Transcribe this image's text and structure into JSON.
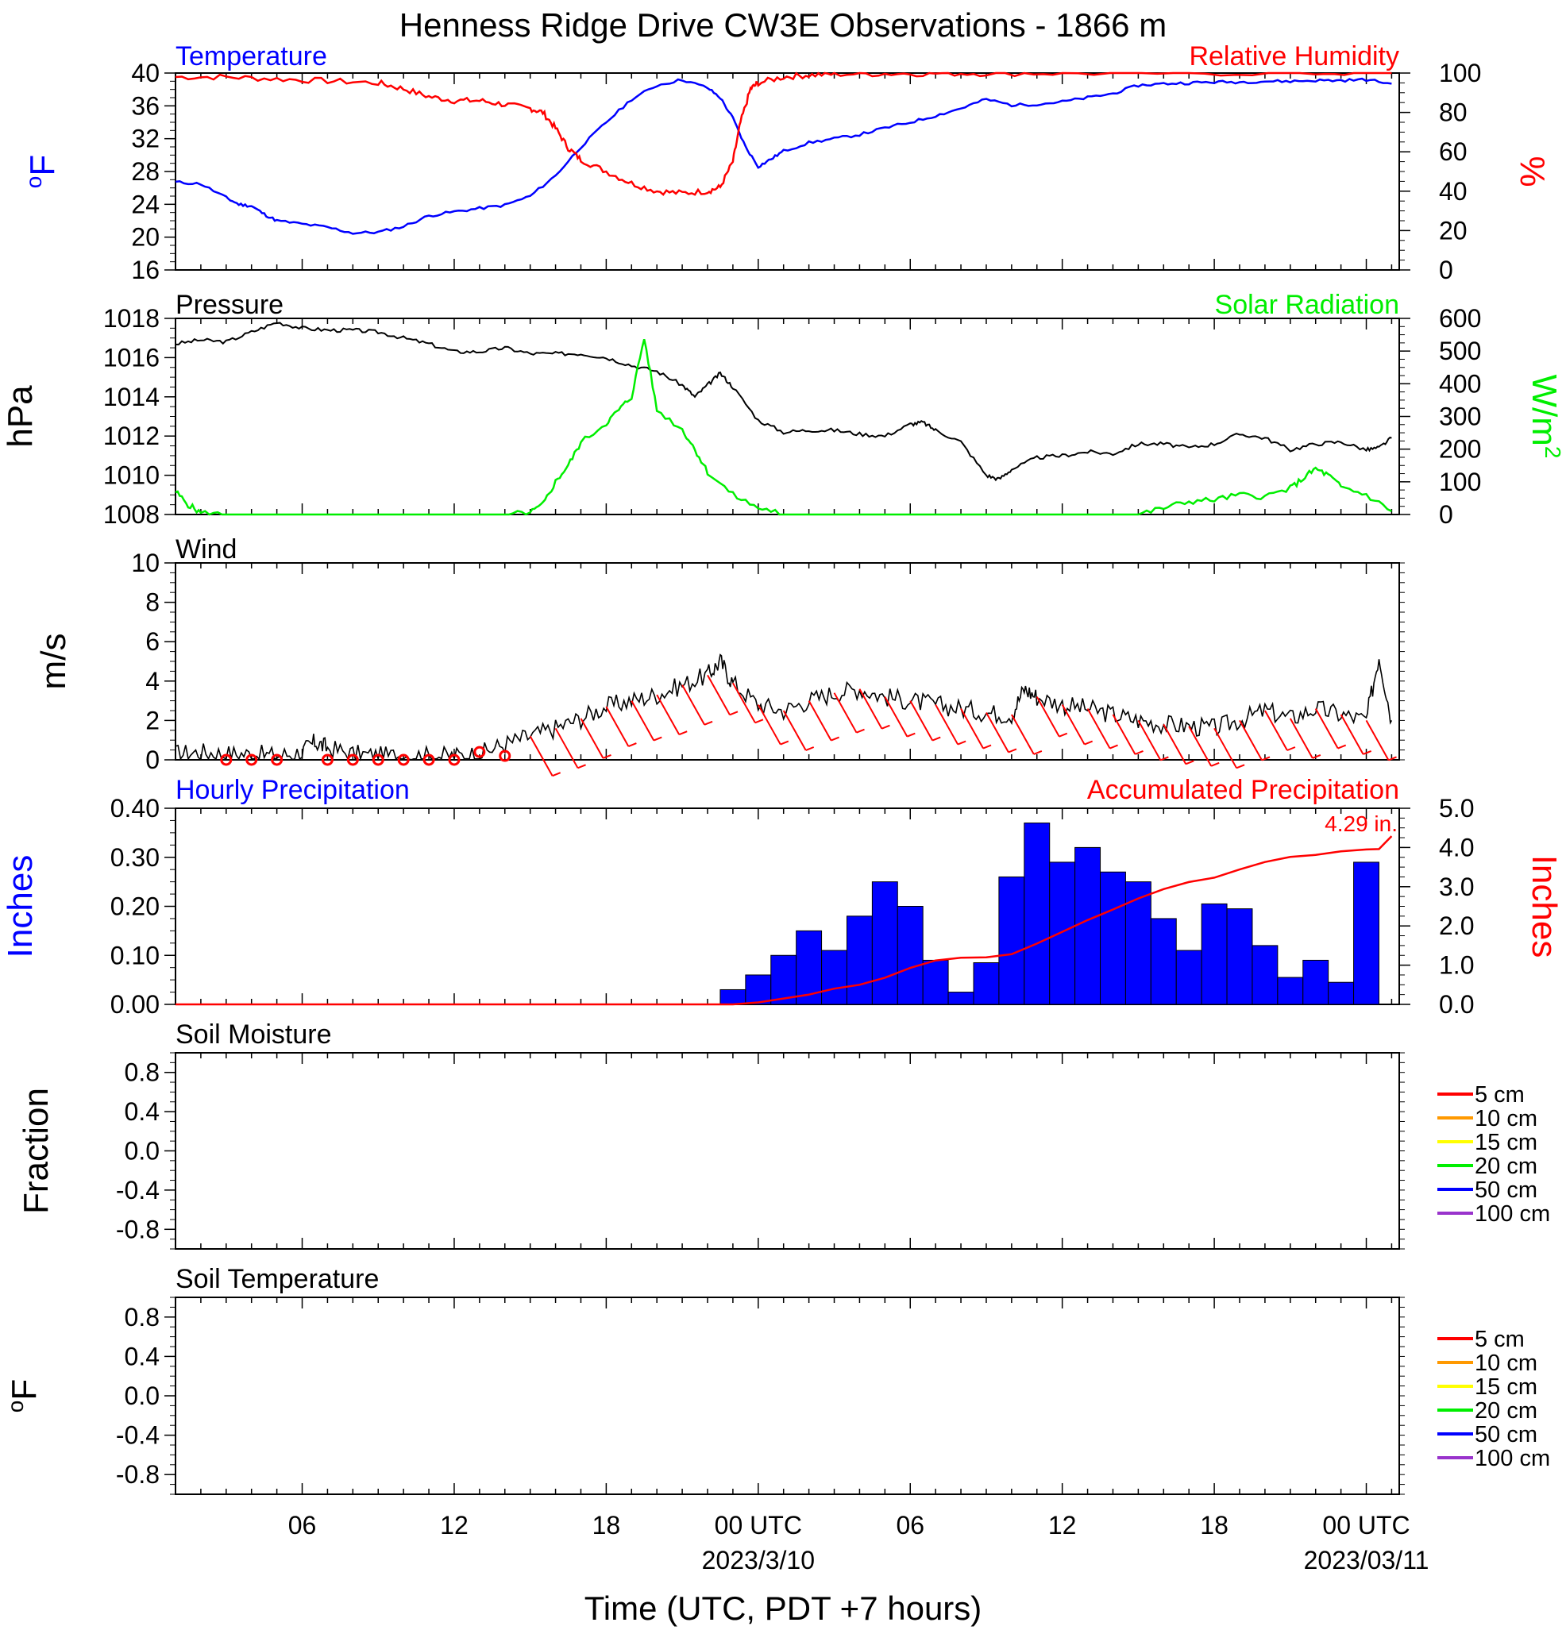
{
  "title": "Henness Ridge Drive CW3E Observations - 1866 m",
  "xlabel": "Time (UTC, PDT +7 hours)",
  "time_axis": {
    "range_hours": [
      0,
      48.3
    ],
    "ticks": [
      {
        "h": 5,
        "label": "06"
      },
      {
        "h": 11,
        "label": "12"
      },
      {
        "h": 17,
        "label": "18"
      },
      {
        "h": 23,
        "label": "00 UTC",
        "date": "2023/3/10"
      },
      {
        "h": 29,
        "label": "06"
      },
      {
        "h": 35,
        "label": "12"
      },
      {
        "h": 41,
        "label": "18"
      },
      {
        "h": 47,
        "label": "00 UTC",
        "date": "2023/03/11"
      }
    ]
  },
  "colors": {
    "temperature": "#0000ff",
    "humidity": "#ff0000",
    "pressure": "#000000",
    "solar": "#00ee00",
    "wind": "#000000",
    "barbs": "#ff0000",
    "hourly_precip": "#0000ff",
    "accum_precip": "#ff0000"
  },
  "panels": {
    "temp": {
      "left_title": "Temperature",
      "right_title": "Relative Humidity",
      "left_unit": "oF",
      "right_unit": "%"
    },
    "press": {
      "left_title": "Pressure",
      "right_title": "Solar Radiation",
      "left_unit": "hPa",
      "right_unit": "W/m2"
    },
    "wind": {
      "left_title": "Wind",
      "left_unit": "m/s"
    },
    "precip": {
      "left_title": "Hourly Precipitation",
      "right_title": "Accumulated Precipitation",
      "left_unit": "Inches",
      "right_unit": "Inches",
      "annotation": "4.29 in."
    },
    "soilm": {
      "left_title": "Soil Moisture",
      "left_unit": "Fraction"
    },
    "soilt": {
      "left_title": "Soil Temperature",
      "left_unit": "oF"
    }
  },
  "legend_depths": [
    {
      "label": "5 cm",
      "color": "#ff0000"
    },
    {
      "label": "10 cm",
      "color": "#ff9900"
    },
    {
      "label": "15 cm",
      "color": "#ffff00"
    },
    {
      "label": "20 cm",
      "color": "#00ee00"
    },
    {
      "label": "50 cm",
      "color": "#0000ff"
    },
    {
      "label": "100 cm",
      "color": "#9933cc"
    }
  ],
  "chart_data": [
    {
      "type": "line",
      "title": "Temperature / Relative Humidity",
      "ylabel": "oF",
      "ylim": [
        16,
        40
      ],
      "yticks": [
        16,
        20,
        24,
        28,
        32,
        36,
        40
      ],
      "y2label": "%",
      "y2lim": [
        0,
        100
      ],
      "y2ticks": [
        0,
        20,
        40,
        60,
        80,
        100
      ],
      "series": [
        {
          "name": "Temperature",
          "axis": "left",
          "x": [
            0,
            1,
            2,
            2.5,
            3,
            3.5,
            4,
            5,
            6,
            7,
            8,
            9,
            10,
            11,
            12,
            13,
            14,
            15,
            16,
            17,
            18,
            19,
            20,
            21,
            21.5,
            22,
            22.5,
            23,
            23.5,
            24,
            25,
            26,
            27,
            28,
            29,
            30,
            31,
            32,
            33,
            34,
            35,
            36,
            37,
            38,
            39,
            40,
            41,
            42,
            43,
            44,
            45,
            46,
            47,
            48
          ],
          "y": [
            26.7,
            26.5,
            24.8,
            24,
            23.8,
            22.8,
            22,
            21.6,
            21.2,
            20.5,
            20.6,
            21.3,
            22.6,
            23.1,
            23.5,
            23.9,
            25,
            27.5,
            31,
            34,
            36.8,
            38.5,
            39.2,
            38.2,
            37,
            34.5,
            31,
            28.6,
            29.5,
            30.5,
            31.5,
            32,
            32.5,
            33.3,
            34,
            34.8,
            35.7,
            36.8,
            36.1,
            36.2,
            36.5,
            37,
            37.5,
            38.5,
            38.7,
            38.8,
            38.9,
            38.9,
            39,
            39,
            39.1,
            39.1,
            39.2,
            38.7
          ]
        },
        {
          "name": "Relative Humidity",
          "axis": "right",
          "x": [
            0,
            2,
            4,
            6,
            8,
            9,
            10,
            11,
            12,
            13,
            14,
            14.5,
            15,
            15.5,
            16,
            17,
            18,
            19,
            20,
            21,
            21.5,
            22,
            22.3,
            22.7,
            23,
            24,
            25,
            26,
            28,
            30,
            32,
            35,
            40,
            45,
            48
          ],
          "y": [
            98,
            98,
            97,
            96,
            95,
            92,
            88,
            86,
            86,
            84,
            82,
            80,
            72,
            62,
            56,
            50,
            44,
            40,
            39,
            40,
            42,
            55,
            75,
            92,
            95,
            98,
            99,
            99.5,
            99.7,
            99.8,
            99.9,
            99.9,
            100,
            100,
            100
          ]
        }
      ]
    },
    {
      "type": "line",
      "title": "Pressure / Solar Radiation",
      "ylabel": "hPa",
      "ylim": [
        1008,
        1018
      ],
      "yticks": [
        1008,
        1010,
        1012,
        1014,
        1016,
        1018
      ],
      "y2label": "W/m2",
      "y2lim": [
        0,
        600
      ],
      "y2ticks": [
        0,
        100,
        200,
        300,
        400,
        500,
        600
      ],
      "series": [
        {
          "name": "Pressure",
          "axis": "left",
          "x": [
            0,
            1,
            2,
            3,
            4,
            5,
            6,
            7,
            8,
            9,
            10,
            11,
            12,
            13,
            14,
            15,
            16,
            17,
            18,
            19,
            20,
            20.5,
            21,
            21.5,
            22,
            23,
            24,
            25,
            26,
            27,
            28,
            29,
            29.5,
            30,
            31,
            32,
            32.5,
            33,
            34,
            35,
            36,
            37,
            38,
            39,
            40,
            41,
            42,
            43,
            44,
            45,
            46,
            47,
            47.5,
            48
          ],
          "y": [
            1016.7,
            1016.9,
            1016.8,
            1017.3,
            1017.8,
            1017.5,
            1017.4,
            1017.4,
            1017.3,
            1017.0,
            1016.7,
            1016.3,
            1016.3,
            1016.5,
            1016.2,
            1016.2,
            1016.2,
            1016.0,
            1015.6,
            1015.3,
            1014.6,
            1014.0,
            1014.6,
            1015.2,
            1014.5,
            1012.8,
            1012.2,
            1012.3,
            1012.3,
            1012.1,
            1012.0,
            1012.6,
            1012.7,
            1012.3,
            1011.7,
            1010.0,
            1009.8,
            1010.3,
            1010.9,
            1011.0,
            1011.2,
            1011.1,
            1011.6,
            1011.6,
            1011.4,
            1011.6,
            1012.1,
            1011.9,
            1011.3,
            1011.6,
            1011.7,
            1011.3,
            1011.4,
            1011.9
          ]
        },
        {
          "name": "Solar Radiation",
          "axis": "right",
          "x": [
            0,
            0.5,
            1,
            2,
            13,
            14,
            14.5,
            15,
            15.5,
            16,
            17,
            17.5,
            18,
            18.5,
            19,
            20,
            20.5,
            21,
            22,
            23,
            24,
            30,
            38,
            39,
            40,
            41,
            42,
            43,
            44,
            44.5,
            45,
            45.5,
            46,
            47,
            48
          ],
          "y": [
            70,
            30,
            5,
            0,
            0,
            5,
            30,
            100,
            150,
            220,
            280,
            320,
            360,
            540,
            320,
            260,
            200,
            130,
            60,
            20,
            5,
            0,
            0,
            20,
            40,
            45,
            60,
            55,
            80,
            110,
            140,
            120,
            85,
            60,
            10
          ]
        }
      ]
    },
    {
      "type": "line",
      "title": "Wind",
      "ylabel": "m/s",
      "ylim": [
        0,
        10
      ],
      "yticks": [
        0,
        2,
        4,
        6,
        8,
        10
      ],
      "series": [
        {
          "name": "Wind",
          "axis": "left",
          "x": [
            0,
            1,
            2,
            3,
            4,
            5,
            5.5,
            6,
            7,
            8,
            9,
            10,
            11,
            12,
            13,
            14,
            15,
            16,
            17,
            18,
            19,
            20,
            21,
            21.5,
            22,
            23,
            24,
            25,
            26,
            27,
            28,
            29,
            30,
            31,
            32,
            33,
            33.5,
            34,
            35,
            36,
            37,
            38,
            39,
            40,
            41,
            42,
            43,
            44,
            45,
            46,
            47,
            47.5,
            48
          ],
          "y": [
            0.3,
            0.4,
            0.3,
            0.3,
            0.2,
            0.4,
            0.9,
            0.6,
            0.3,
            0.2,
            0.2,
            0.2,
            0.2,
            0.3,
            0.8,
            1.2,
            1.6,
            2.1,
            2.7,
            3.0,
            3.3,
            3.8,
            4.3,
            5.0,
            3.9,
            2.8,
            2.5,
            3.0,
            3.4,
            3.6,
            3.2,
            3.0,
            2.8,
            2.6,
            2.4,
            2.3,
            3.6,
            3.2,
            2.8,
            2.6,
            2.3,
            2.0,
            1.8,
            1.7,
            1.6,
            2.0,
            2.5,
            2.1,
            2.6,
            2.3,
            2.0,
            5.3,
            2.0
          ]
        }
      ]
    },
    {
      "type": "bar",
      "title": "Hourly Precipitation / Accumulated Precipitation",
      "ylabel": "Inches",
      "ylim": [
        0,
        0.4
      ],
      "yticks": [
        0.0,
        0.1,
        0.2,
        0.3,
        0.4
      ],
      "ytick_labels": [
        "0.00",
        "0.10",
        "0.20",
        "0.30",
        "0.40"
      ],
      "y2label": "Inches",
      "y2lim": [
        0,
        5
      ],
      "y2ticks": [
        0,
        1,
        2,
        3,
        4,
        5
      ],
      "y2tick_labels": [
        "0.0",
        "1.0",
        "2.0",
        "3.0",
        "4.0",
        "5.0"
      ],
      "series": [
        {
          "name": "Hourly Precipitation",
          "axis": "left",
          "x": [
            22,
            23,
            24,
            25,
            26,
            27,
            28,
            29,
            30,
            31,
            32,
            33,
            34,
            35,
            36,
            37,
            38,
            39,
            40,
            41,
            42,
            43,
            44,
            45,
            46,
            47
          ],
          "values": [
            0.03,
            0.06,
            0.1,
            0.15,
            0.11,
            0.18,
            0.25,
            0.2,
            0.09,
            0.025,
            0.085,
            0.26,
            0.37,
            0.29,
            0.32,
            0.27,
            0.25,
            0.175,
            0.11,
            0.205,
            0.195,
            0.12,
            0.055,
            0.09,
            0.045,
            0.29
          ]
        },
        {
          "name": "Accumulated Precipitation",
          "axis": "right",
          "type": "line",
          "x": [
            0,
            22,
            23,
            24,
            25,
            26,
            27,
            28,
            29,
            30,
            31,
            32,
            33,
            34,
            35,
            36,
            37,
            38,
            39,
            40,
            41,
            42,
            43,
            44,
            45,
            46,
            47,
            47.5,
            48
          ],
          "y": [
            0,
            0,
            0.05,
            0.15,
            0.25,
            0.4,
            0.5,
            0.68,
            0.93,
            1.12,
            1.19,
            1.2,
            1.28,
            1.55,
            1.85,
            2.15,
            2.42,
            2.7,
            2.94,
            3.12,
            3.23,
            3.44,
            3.63,
            3.76,
            3.81,
            3.9,
            3.95,
            3.96,
            4.29
          ]
        }
      ]
    },
    {
      "type": "line",
      "title": "Soil Moisture",
      "ylabel": "Fraction",
      "ylim": [
        -1,
        1
      ],
      "yticks": [
        -0.8,
        -0.4,
        0.0,
        0.4,
        0.8
      ],
      "ytick_labels": [
        "-0.8",
        "-0.4",
        "0.0",
        "0.4",
        "0.8"
      ],
      "series": []
    },
    {
      "type": "line",
      "title": "Soil Temperature",
      "ylabel": "oF",
      "ylim": [
        -1,
        1
      ],
      "yticks": [
        -0.8,
        -0.4,
        0.0,
        0.4,
        0.8
      ],
      "ytick_labels": [
        "-0.8",
        "-0.4",
        "0.0",
        "0.4",
        "0.8"
      ],
      "series": []
    }
  ]
}
